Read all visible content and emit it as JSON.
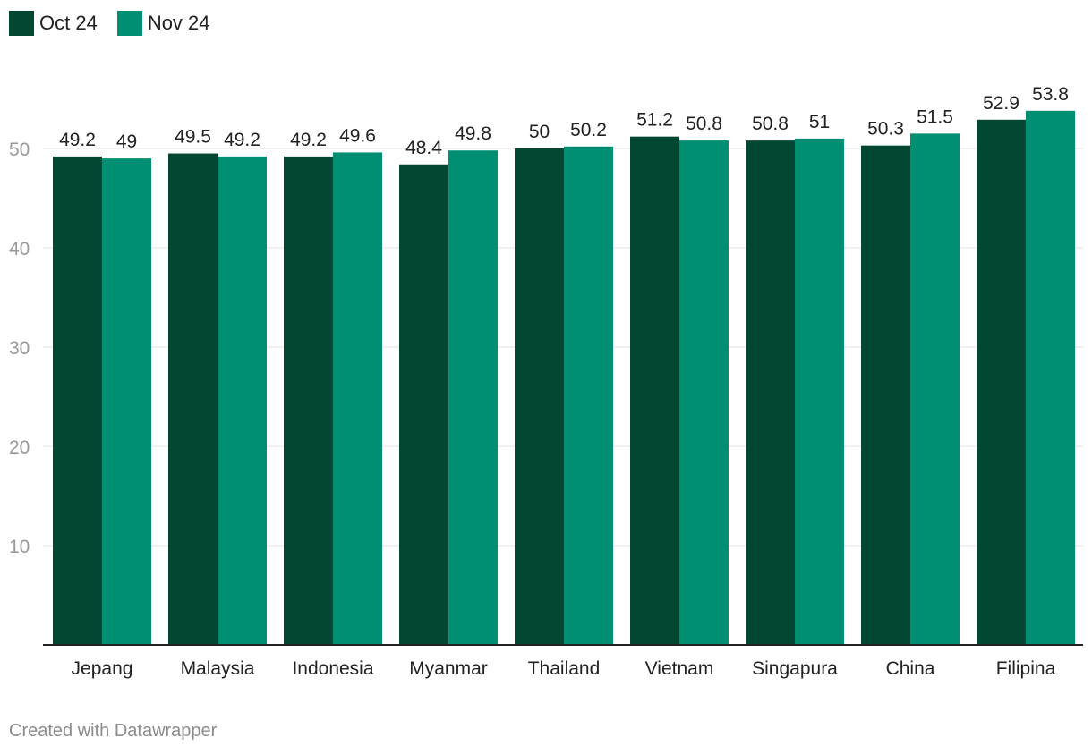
{
  "chart_data": {
    "type": "bar",
    "categories": [
      "Jepang",
      "Malaysia",
      "Indonesia",
      "Myanmar",
      "Thailand",
      "Vietnam",
      "Singapura",
      "China",
      "Filipina"
    ],
    "series": [
      {
        "name": "Oct 24",
        "color": "#014731",
        "values": [
          49.2,
          49.5,
          49.2,
          48.4,
          50,
          51.2,
          50.8,
          50.3,
          52.9
        ],
        "labels": [
          "49.2",
          "49.5",
          "49.2",
          "48.4",
          "50",
          "51.2",
          "50.8",
          "50.3",
          "52.9"
        ]
      },
      {
        "name": "Nov 24",
        "color": "#008f72",
        "values": [
          49,
          49.2,
          49.6,
          49.8,
          50.2,
          50.8,
          51,
          51.5,
          53.8
        ],
        "labels": [
          "49",
          "49.2",
          "49.6",
          "49.8",
          "50.2",
          "50.8",
          "51",
          "51.5",
          "53.8"
        ]
      }
    ],
    "yticks": [
      "10",
      "20",
      "30",
      "40",
      "50"
    ],
    "ytick_values": [
      10,
      20,
      30,
      40,
      50
    ],
    "ylim": [
      0,
      55
    ],
    "grid": true,
    "legend_position": "top-left"
  },
  "footer": {
    "credit": "Created with Datawrapper"
  },
  "colors": {
    "grid": "#e1e1e1",
    "axis": "#222222",
    "tick_label": "#9a9a9a",
    "label": "#222222"
  }
}
